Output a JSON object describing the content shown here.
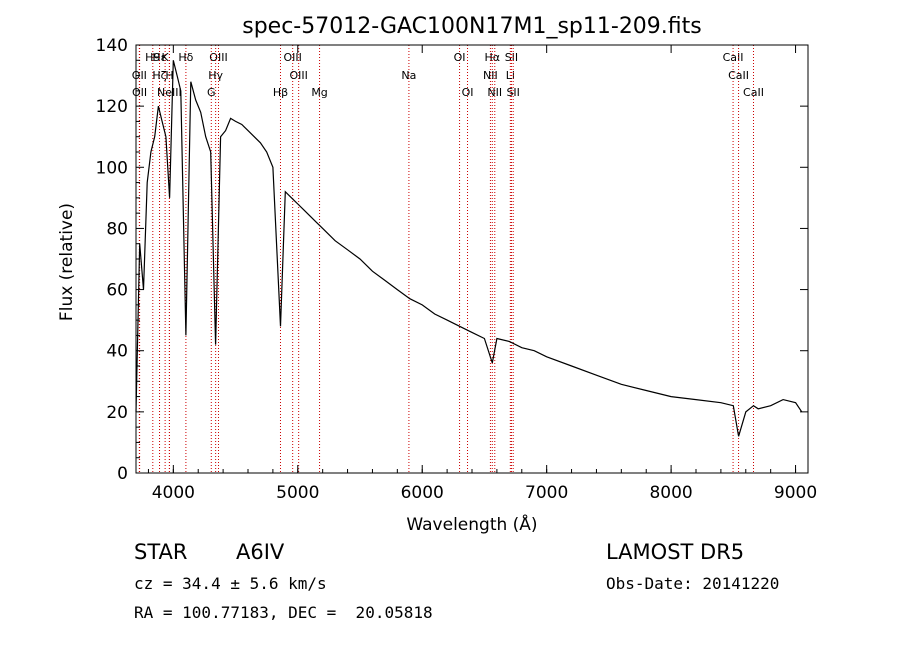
{
  "chart_data": {
    "type": "line",
    "title": "spec-57012-GAC100N17M1_sp11-209.fits",
    "xlabel": "Wavelength (Å)",
    "ylabel": "Flux (relative)",
    "xlim": [
      3700,
      9100
    ],
    "ylim": [
      0,
      140
    ],
    "xticks": [
      "4000",
      "5000",
      "6000",
      "7000",
      "8000",
      "9000"
    ],
    "yticks": [
      "0",
      "20",
      "40",
      "60",
      "80",
      "100",
      "120",
      "140"
    ],
    "grid": false,
    "line_color": "#000000",
    "marker_color": "#cc0000",
    "series": [
      {
        "x": [
          3700,
          3730,
          3760,
          3790,
          3820,
          3850,
          3880,
          3910,
          3940,
          3970,
          4000,
          4030,
          4060,
          4101,
          4140,
          4180,
          4220,
          4260,
          4300,
          4340,
          4380,
          4420,
          4460,
          4500,
          4550,
          4600,
          4650,
          4700,
          4750,
          4800,
          4861,
          4900,
          4950,
          5000,
          5050,
          5100,
          5150,
          5200,
          5300,
          5400,
          5500,
          5600,
          5700,
          5800,
          5900,
          6000,
          6100,
          6200,
          6300,
          6400,
          6500,
          6563,
          6600,
          6700,
          6800,
          6900,
          7000,
          7200,
          7400,
          7600,
          7800,
          8000,
          8200,
          8400,
          8500,
          8542,
          8600,
          8662,
          8700,
          8800,
          8900,
          9000,
          9050
        ],
        "y": [
          20,
          75,
          60,
          95,
          105,
          110,
          120,
          115,
          110,
          90,
          135,
          130,
          125,
          45,
          128,
          122,
          118,
          110,
          105,
          42,
          110,
          112,
          116,
          115,
          114,
          112,
          110,
          108,
          105,
          100,
          48,
          92,
          90,
          88,
          86,
          84,
          82,
          80,
          76,
          73,
          70,
          66,
          63,
          60,
          57,
          55,
          52,
          50,
          48,
          46,
          44,
          36,
          44,
          43,
          41,
          40,
          38,
          35,
          32,
          29,
          27,
          25,
          24,
          23,
          22,
          12,
          20,
          22,
          21,
          22,
          24,
          23,
          20
        ]
      }
    ],
    "lines": [
      {
        "label": "H9",
        "x": 3835,
        "row": 0
      },
      {
        "label": "OII",
        "x": 3727,
        "row": 1
      },
      {
        "label": "OII",
        "x": 3729,
        "row": 2
      },
      {
        "label": "Hε",
        "x": 3889,
        "row": 0
      },
      {
        "label": "Hζ",
        "x": 3889,
        "row": 1
      },
      {
        "label": "K",
        "x": 3934,
        "row": 0
      },
      {
        "label": "H",
        "x": 3969,
        "row": 1
      },
      {
        "label": "Hδ",
        "x": 4101,
        "row": 0
      },
      {
        "label": "NeIII",
        "x": 3968,
        "row": 2
      },
      {
        "label": "OIII",
        "x": 4363,
        "row": 0
      },
      {
        "label": "Hγ",
        "x": 4340,
        "row": 1
      },
      {
        "label": "G",
        "x": 4305,
        "row": 2
      },
      {
        "label": "Hβ",
        "x": 4861,
        "row": 2
      },
      {
        "label": "OIII",
        "x": 4959,
        "row": 0
      },
      {
        "label": "OIII",
        "x": 5007,
        "row": 1
      },
      {
        "label": "Mg",
        "x": 5175,
        "row": 2
      },
      {
        "label": "Na",
        "x": 5893,
        "row": 1
      },
      {
        "label": "OI",
        "x": 6300,
        "row": 0
      },
      {
        "label": "OI",
        "x": 6364,
        "row": 2
      },
      {
        "label": "Hα",
        "x": 6563,
        "row": 0
      },
      {
        "label": "NII",
        "x": 6548,
        "row": 1
      },
      {
        "label": "NII",
        "x": 6583,
        "row": 2
      },
      {
        "label": "SII",
        "x": 6717,
        "row": 0
      },
      {
        "label": "Li",
        "x": 6708,
        "row": 1
      },
      {
        "label": "SII",
        "x": 6731,
        "row": 2
      },
      {
        "label": "CaII",
        "x": 8498,
        "row": 0
      },
      {
        "label": "CaII",
        "x": 8542,
        "row": 1
      },
      {
        "label": "CaII",
        "x": 8662,
        "row": 2
      }
    ]
  },
  "info": {
    "class_label": "STAR",
    "subclass": "A6IV",
    "survey": "LAMOST DR5",
    "cz": "cz = 34.4 ± 5.6 km/s",
    "obs_date": "Obs-Date: 20141220",
    "coords": "RA = 100.77183, DEC =  20.05818"
  }
}
